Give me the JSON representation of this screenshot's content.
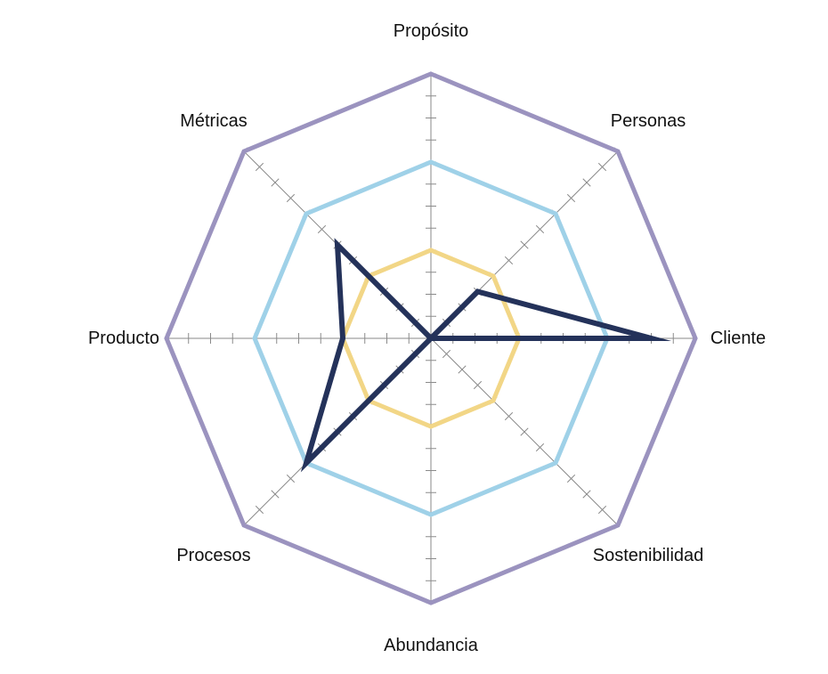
{
  "chart_data": {
    "type": "radar",
    "axes": [
      "Propósito",
      "Personas",
      "Cliente",
      "Sostenibilidad",
      "Abundancia",
      "Procesos",
      "Producto",
      "Métricas"
    ],
    "range": [
      0,
      12
    ],
    "ticks_per_axis": 12,
    "grid": false,
    "legend": "none",
    "series": [
      {
        "color": "#9b93bf",
        "values": [
          12,
          12,
          12,
          12,
          12,
          12,
          12,
          12
        ]
      },
      {
        "color": "#9fd1e8",
        "values": [
          8,
          8,
          8,
          8,
          8,
          8,
          8,
          8
        ]
      },
      {
        "color": "#f2d686",
        "values": [
          4,
          4,
          4,
          4,
          4,
          4,
          4,
          4
        ]
      },
      {
        "color": "#24325a",
        "values": [
          0,
          3,
          10,
          0,
          0,
          8,
          4,
          6
        ]
      }
    ]
  }
}
